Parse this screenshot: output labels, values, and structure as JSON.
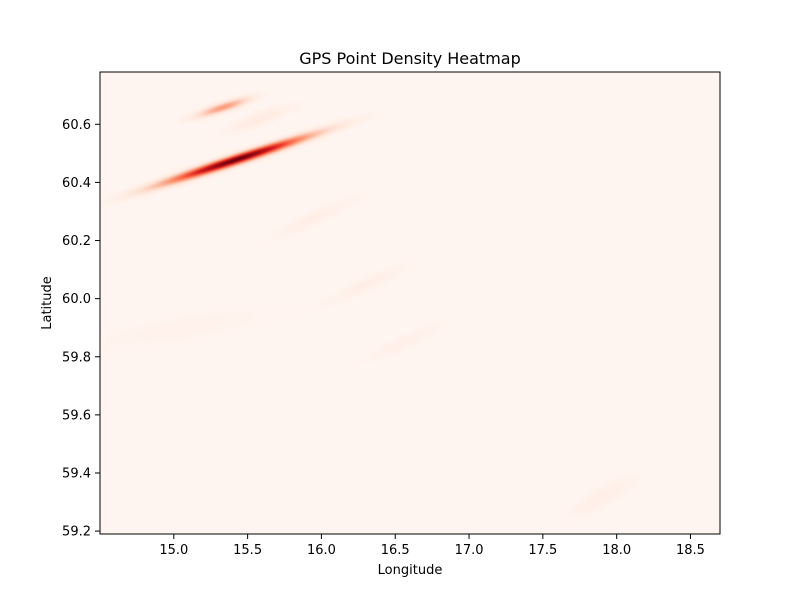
{
  "chart_data": {
    "type": "heatmap",
    "title": "GPS Point Density Heatmap",
    "xlabel": "Longitude",
    "ylabel": "Latitude",
    "xlim": [
      14.5,
      18.7
    ],
    "ylim": [
      59.19,
      60.78
    ],
    "x_ticks": [
      15.0,
      15.5,
      16.0,
      16.5,
      17.0,
      17.5,
      18.0,
      18.5
    ],
    "x_tick_labels": [
      "15.0",
      "15.5",
      "16.0",
      "16.5",
      "17.0",
      "17.5",
      "18.0",
      "18.5"
    ],
    "y_ticks": [
      59.2,
      59.4,
      59.6,
      59.8,
      60.0,
      60.2,
      60.4,
      60.6
    ],
    "y_tick_labels": [
      "59.2",
      "59.4",
      "59.6",
      "59.8",
      "60.0",
      "60.2",
      "60.4",
      "60.6"
    ],
    "colormap": "Reds",
    "background_color": "#fff5f0",
    "grid": false,
    "density_hotspots": [
      {
        "lon": 15.42,
        "lat": 60.48,
        "intensity": 1.0,
        "spread_along": 0.17,
        "spread_across": 0.022,
        "orientation_deg": 72
      },
      {
        "lon": 15.33,
        "lat": 60.66,
        "intensity": 0.35,
        "spread_along": 0.06,
        "spread_across": 0.02,
        "orientation_deg": 72
      },
      {
        "lon": 15.58,
        "lat": 60.62,
        "intensity": 0.06,
        "spread_along": 0.08,
        "spread_across": 0.03,
        "orientation_deg": 70
      },
      {
        "lon": 15.95,
        "lat": 60.28,
        "intensity": 0.04,
        "spread_along": 0.1,
        "spread_across": 0.03,
        "orientation_deg": 65
      },
      {
        "lon": 16.3,
        "lat": 60.05,
        "intensity": 0.04,
        "spread_along": 0.1,
        "spread_across": 0.03,
        "orientation_deg": 65
      },
      {
        "lon": 16.55,
        "lat": 59.85,
        "intensity": 0.03,
        "spread_along": 0.1,
        "spread_across": 0.03,
        "orientation_deg": 65
      },
      {
        "lon": 17.9,
        "lat": 59.32,
        "intensity": 0.04,
        "spread_along": 0.08,
        "spread_across": 0.04,
        "orientation_deg": 60
      },
      {
        "lon": 15.05,
        "lat": 59.9,
        "intensity": 0.02,
        "spread_along": 0.2,
        "spread_across": 0.06,
        "orientation_deg": 80
      }
    ]
  }
}
